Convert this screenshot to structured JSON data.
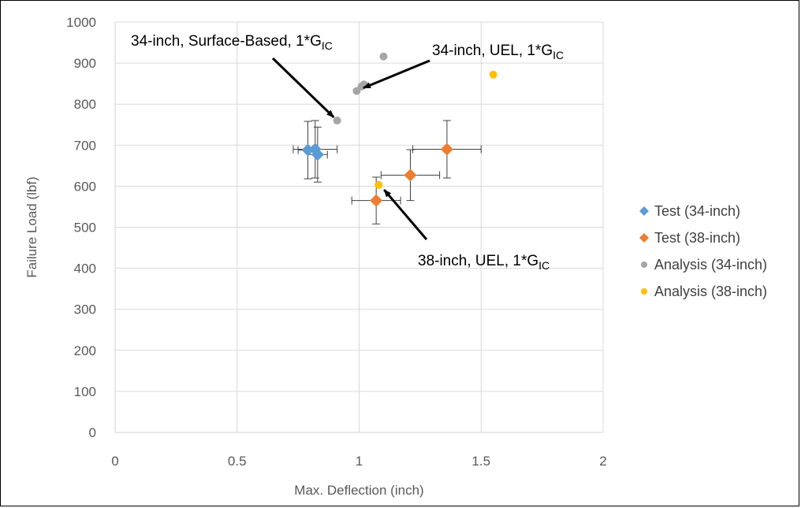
{
  "chart_data": {
    "type": "scatter",
    "title": "",
    "xlabel": "Max. Deflection (inch)",
    "ylabel": "Failure Load (lbf)",
    "xlim": [
      0,
      2
    ],
    "ylim": [
      0,
      1000
    ],
    "x_ticks": [
      "0",
      "0.5",
      "1",
      "1.5",
      "2"
    ],
    "y_ticks": [
      "0",
      "100",
      "200",
      "300",
      "400",
      "500",
      "600",
      "700",
      "800",
      "900",
      "1000"
    ],
    "grid": true,
    "legend_position": "right",
    "series": [
      {
        "name": "Test (34-inch)",
        "marker": "diamond",
        "color": "#5B9BD5",
        "points": [
          {
            "x": 0.79,
            "y": 688,
            "xerr": 0.04,
            "yerr": 70
          },
          {
            "x": 0.82,
            "y": 690,
            "xerr": 0.09,
            "yerr": 70
          },
          {
            "x": 0.83,
            "y": 677,
            "xerr": 0.04,
            "yerr": 67
          }
        ]
      },
      {
        "name": "Test (38-inch)",
        "marker": "diamond",
        "color": "#ED7D31",
        "points": [
          {
            "x": 1.07,
            "y": 565,
            "xerr": 0.1,
            "yerr": 57
          },
          {
            "x": 1.21,
            "y": 627,
            "xerr": 0.12,
            "yerr": 62
          },
          {
            "x": 1.36,
            "y": 690,
            "xerr": 0.14,
            "yerr": 70
          }
        ]
      },
      {
        "name": "Analysis (34-inch)",
        "marker": "circle",
        "color": "#A5A5A5",
        "points": [
          {
            "x": 0.91,
            "y": 760
          },
          {
            "x": 0.99,
            "y": 832
          },
          {
            "x": 1.01,
            "y": 843
          },
          {
            "x": 1.02,
            "y": 848
          },
          {
            "x": 1.1,
            "y": 916
          }
        ]
      },
      {
        "name": "Analysis (38-inch)",
        "marker": "circle",
        "color": "#FFC000",
        "points": [
          {
            "x": 1.08,
            "y": 603
          },
          {
            "x": 1.55,
            "y": 872
          }
        ]
      }
    ],
    "annotations": [
      {
        "text": "34-inch, Surface-Based, 1*G",
        "sub": "IC",
        "target": {
          "x": 0.91,
          "y": 760
        }
      },
      {
        "text": "34-inch, UEL, 1*G",
        "sub": "IC",
        "target": {
          "x": 1.0,
          "y": 835
        }
      },
      {
        "text": "38-inch, UEL, 1*G",
        "sub": "IC",
        "target": {
          "x": 1.09,
          "y": 600
        }
      }
    ]
  }
}
